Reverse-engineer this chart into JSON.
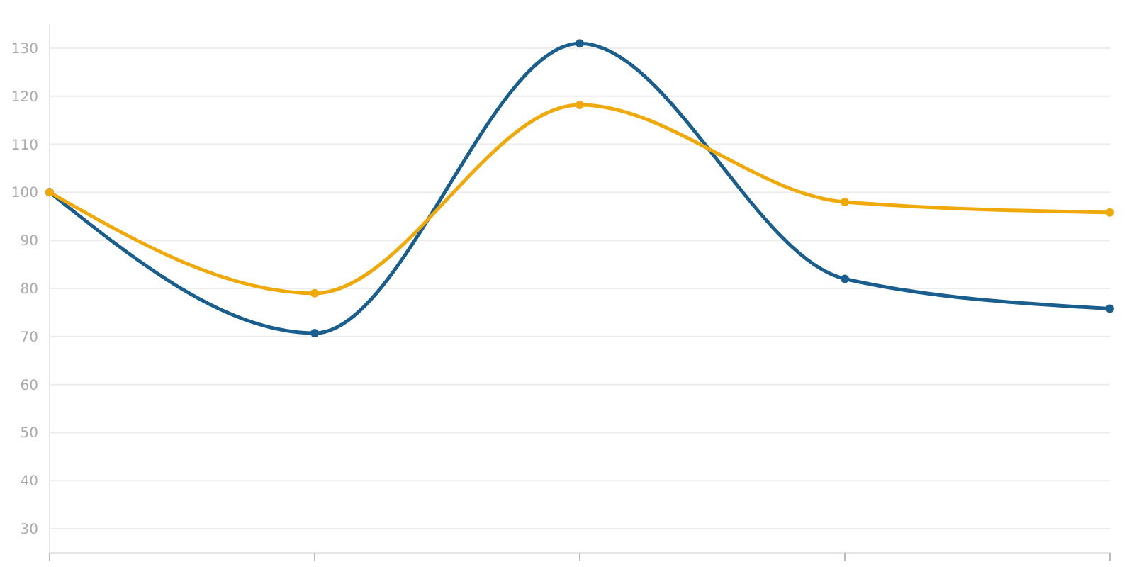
{
  "chart_data": {
    "type": "line",
    "categories": [
      null,
      null,
      null,
      null,
      null
    ],
    "series": [
      {
        "color": "#1a5e8e",
        "values": [
          100,
          70.7,
          131,
          82,
          75.8
        ]
      },
      {
        "color": "#f0a90a",
        "values": [
          100,
          79,
          118.2,
          98,
          95.8
        ]
      }
    ],
    "ylim": [
      25,
      135
    ],
    "yticks": [
      30,
      40,
      50,
      60,
      70,
      80,
      90,
      100,
      110,
      120,
      130
    ],
    "grid": "y",
    "marker": "circle",
    "line_style": "solid"
  }
}
